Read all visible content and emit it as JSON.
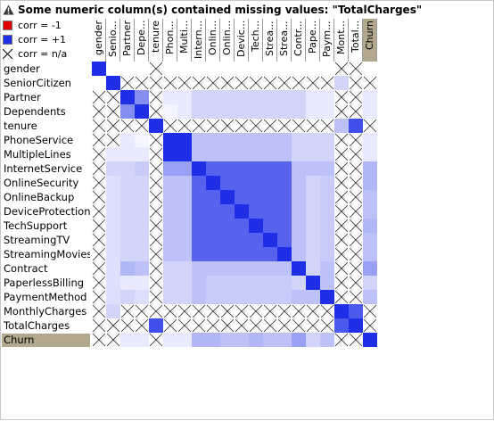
{
  "warning": {
    "icon": "warning-icon",
    "text": "Some numeric column(s) contained missing values: \"TotalCharges\""
  },
  "legend": [
    {
      "label": "corr = -1",
      "color": "#e00000",
      "kind": "neg"
    },
    {
      "label": "corr = +1",
      "color": "#1f2fe8",
      "kind": "pos"
    },
    {
      "label": "corr = n/a",
      "color": "",
      "kind": "na"
    }
  ],
  "target_color": "#b3a78d",
  "variables": [
    {
      "row": "gender",
      "col": "gender"
    },
    {
      "row": "SeniorCitizen",
      "col": "Senio..."
    },
    {
      "row": "Partner",
      "col": "Partner"
    },
    {
      "row": "Dependents",
      "col": "Depe..."
    },
    {
      "row": "tenure",
      "col": "tenure"
    },
    {
      "row": "PhoneService",
      "col": "Phon..."
    },
    {
      "row": "MultipleLines",
      "col": "Multi..."
    },
    {
      "row": "InternetService",
      "col": "Intern..."
    },
    {
      "row": "OnlineSecurity",
      "col": "Onlin..."
    },
    {
      "row": "OnlineBackup",
      "col": "Onlin..."
    },
    {
      "row": "DeviceProtection",
      "col": "Devic..."
    },
    {
      "row": "TechSupport",
      "col": "Tech..."
    },
    {
      "row": "StreamingTV",
      "col": "Strea..."
    },
    {
      "row": "StreamingMovies",
      "col": "Strea..."
    },
    {
      "row": "Contract",
      "col": "Contr..."
    },
    {
      "row": "PaperlessBilling",
      "col": "Pape..."
    },
    {
      "row": "PaymentMethod",
      "col": "Paym..."
    },
    {
      "row": "MonthlyCharges",
      "col": "Mont..."
    },
    {
      "row": "TotalCharges",
      "col": "Total..."
    },
    {
      "row": "Churn",
      "col": "Churn",
      "target": true
    }
  ],
  "matrix": [
    [
      "1",
      "0",
      "0",
      "0",
      "x",
      "0",
      "0",
      "0",
      "0",
      "0",
      "0",
      "0",
      "0",
      "0",
      "0",
      "0",
      "0",
      "x",
      "x",
      "0"
    ],
    [
      "0",
      "1",
      "x",
      "x",
      "x",
      "x",
      "x",
      "x",
      "x",
      "x",
      "x",
      "x",
      "x",
      "x",
      "x",
      "x",
      "x",
      "0.2",
      "x",
      "x"
    ],
    [
      "x",
      "x",
      "1",
      "0.55",
      "x",
      "0.1",
      "0.1",
      "0.2",
      "0.2",
      "0.2",
      "0.2",
      "0.2",
      "0.2",
      "0.2",
      "0.2",
      "0.1",
      "0.1",
      "x",
      "x",
      "0.1"
    ],
    [
      "x",
      "x",
      "0.55",
      "1",
      "x",
      "0.05",
      "0.1",
      "0.2",
      "0.2",
      "0.2",
      "0.2",
      "0.2",
      "0.2",
      "0.2",
      "0.2",
      "0.1",
      "0.1",
      "x",
      "x",
      "0.1"
    ],
    [
      "x",
      "x",
      "x",
      "x",
      "1",
      "x",
      "x",
      "x",
      "x",
      "x",
      "x",
      "x",
      "x",
      "x",
      "x",
      "x",
      "x",
      "0.3",
      "0.85",
      "x"
    ],
    [
      "x",
      "x",
      "0.1",
      "0.05",
      "x",
      "1",
      "1",
      "0.3",
      "0.3",
      "0.3",
      "0.3",
      "0.3",
      "0.3",
      "0.3",
      "0.2",
      "0.2",
      "0.2",
      "x",
      "x",
      "0.1"
    ],
    [
      "x",
      "0.1",
      "0.1",
      "0.1",
      "x",
      "1",
      "1",
      "0.3",
      "0.3",
      "0.3",
      "0.3",
      "0.3",
      "0.3",
      "0.3",
      "0.2",
      "0.2",
      "0.2",
      "x",
      "x",
      "0.1"
    ],
    [
      "x",
      "0.2",
      "0.2",
      "0.25",
      "x",
      "0.45",
      "0.45",
      "1",
      "0.75",
      "0.75",
      "0.75",
      "0.75",
      "0.75",
      "0.75",
      "0.3",
      "0.3",
      "0.3",
      "x",
      "x",
      "0.35"
    ],
    [
      "x",
      "0.15",
      "0.2",
      "0.2",
      "x",
      "0.3",
      "0.3",
      "0.75",
      "1",
      "0.75",
      "0.75",
      "0.75",
      "0.75",
      "0.75",
      "0.3",
      "0.2",
      "0.25",
      "x",
      "x",
      "0.35"
    ],
    [
      "x",
      "0.15",
      "0.2",
      "0.2",
      "x",
      "0.3",
      "0.3",
      "0.75",
      "0.75",
      "1",
      "0.75",
      "0.75",
      "0.75",
      "0.75",
      "0.3",
      "0.2",
      "0.25",
      "x",
      "x",
      "0.3"
    ],
    [
      "x",
      "0.15",
      "0.2",
      "0.2",
      "x",
      "0.3",
      "0.3",
      "0.75",
      "0.75",
      "0.75",
      "1",
      "0.75",
      "0.75",
      "0.75",
      "0.3",
      "0.2",
      "0.25",
      "x",
      "x",
      "0.3"
    ],
    [
      "x",
      "0.15",
      "0.2",
      "0.2",
      "x",
      "0.3",
      "0.3",
      "0.75",
      "0.75",
      "0.75",
      "0.75",
      "1",
      "0.75",
      "0.75",
      "0.3",
      "0.2",
      "0.25",
      "x",
      "x",
      "0.35"
    ],
    [
      "x",
      "0.15",
      "0.2",
      "0.2",
      "x",
      "0.3",
      "0.3",
      "0.75",
      "0.75",
      "0.75",
      "0.75",
      "0.75",
      "1",
      "0.75",
      "0.3",
      "0.2",
      "0.25",
      "x",
      "x",
      "0.3"
    ],
    [
      "x",
      "0.15",
      "0.2",
      "0.2",
      "x",
      "0.3",
      "0.3",
      "0.75",
      "0.75",
      "0.75",
      "0.75",
      "0.75",
      "0.75",
      "1",
      "0.3",
      "0.2",
      "0.25",
      "x",
      "x",
      "0.3"
    ],
    [
      "x",
      "0.15",
      "0.35",
      "0.3",
      "x",
      "0.2",
      "0.2",
      "0.3",
      "0.3",
      "0.3",
      "0.3",
      "0.3",
      "0.3",
      "0.3",
      "1",
      "0.2",
      "0.3",
      "x",
      "x",
      "0.45"
    ],
    [
      "x",
      "0.15",
      "0.1",
      "0.1",
      "x",
      "0.2",
      "0.2",
      "0.3",
      "0.25",
      "0.25",
      "0.25",
      "0.25",
      "0.25",
      "0.25",
      "0.2",
      "1",
      "0.3",
      "x",
      "x",
      "0.2"
    ],
    [
      "x",
      "0.15",
      "0.2",
      "0.15",
      "x",
      "0.2",
      "0.2",
      "0.3",
      "0.25",
      "0.25",
      "0.25",
      "0.25",
      "0.25",
      "0.25",
      "0.3",
      "0.3",
      "1",
      "x",
      "x",
      "0.3"
    ],
    [
      "x",
      "0.2",
      "x",
      "x",
      "x",
      "x",
      "x",
      "x",
      "x",
      "x",
      "x",
      "x",
      "x",
      "x",
      "x",
      "x",
      "x",
      "1",
      "0.8",
      "x"
    ],
    [
      "x",
      "x",
      "x",
      "x",
      "0.85",
      "x",
      "x",
      "x",
      "x",
      "x",
      "x",
      "x",
      "x",
      "x",
      "x",
      "x",
      "x",
      "0.8",
      "1",
      "x"
    ],
    [
      "x",
      "x",
      "0.1",
      "0.1",
      "x",
      "0.1",
      "0.1",
      "0.35",
      "0.35",
      "0.3",
      "0.3",
      "0.35",
      "0.3",
      "0.3",
      "0.45",
      "0.2",
      "0.3",
      "x",
      "x",
      "1"
    ]
  ]
}
